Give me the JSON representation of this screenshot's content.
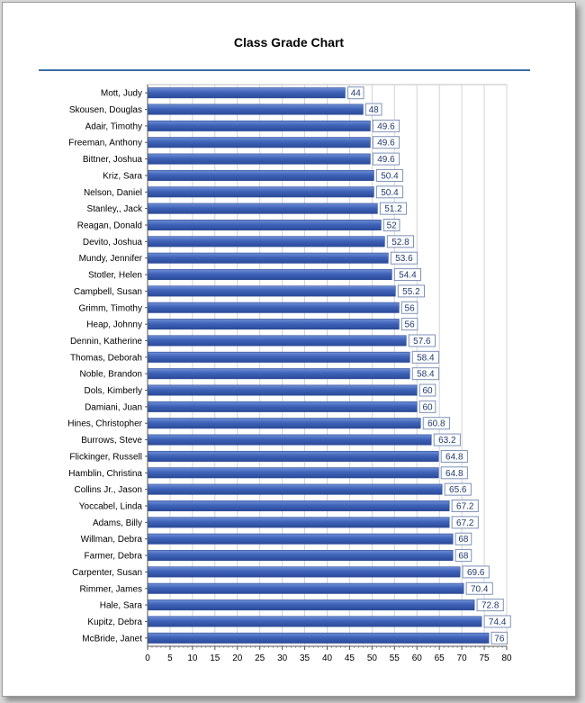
{
  "chart_data": {
    "type": "bar",
    "orientation": "horizontal",
    "title": "Class Grade Chart",
    "categories": [
      "Mott, Judy",
      "Skousen, Douglas",
      "Adair, Timothy",
      "Freeman, Anthony",
      "Bittner, Joshua",
      "Kriz, Sara",
      "Nelson, Daniel",
      "Stanley,, Jack",
      "Reagan, Donald",
      "Devito, Joshua",
      "Mundy, Jennifer",
      "Stotler, Helen",
      "Campbell, Susan",
      "Grimm, Timothy",
      "Heap, Johnny",
      "Dennin, Katherine",
      "Thomas, Deborah",
      "Noble, Brandon",
      "Dols, Kimberly",
      "Damiani, Juan",
      "Hines, Christopher",
      "Burrows, Steve",
      "Flickinger, Russell",
      "Hamblin, Christina",
      "Collins Jr., Jason",
      "Yoccabel, Linda",
      "Adams, Billy",
      "Willman, Debra",
      "Farmer, Debra",
      "Carpenter, Susan",
      "Rimmer, James",
      "Hale, Sara",
      "Kupitz, Debra",
      "McBride, Janet"
    ],
    "values": [
      44,
      48,
      49.6,
      49.6,
      49.6,
      50.4,
      50.4,
      51.2,
      52,
      52.8,
      53.6,
      54.4,
      55.2,
      56,
      56,
      57.6,
      58.4,
      58.4,
      60,
      60,
      60.8,
      63.2,
      64.8,
      64.8,
      65.6,
      67.2,
      67.2,
      68,
      68,
      69.6,
      70.4,
      72.8,
      74.4,
      76
    ],
    "value_labels": [
      "44",
      "48",
      "49.6",
      "49.6",
      "49.6",
      "50.4",
      "50.4",
      "51.2",
      "52",
      "52.8",
      "53.6",
      "54.4",
      "55.2",
      "56",
      "56",
      "57.6",
      "58.4",
      "58.4",
      "60",
      "60",
      "60.8",
      "63.2",
      "64.8",
      "64.8",
      "65.6",
      "67.2",
      "67.2",
      "68",
      "68",
      "69.6",
      "70.4",
      "72.8",
      "74.4",
      "76"
    ],
    "xlim": [
      0,
      80
    ],
    "x_ticks": [
      "0",
      "5",
      "10",
      "15",
      "20",
      "25",
      "30",
      "35",
      "40",
      "45",
      "50",
      "55",
      "60",
      "65",
      "70",
      "75",
      "80"
    ],
    "grid": "vertical",
    "legend": "none",
    "colors": {
      "bar": "#3f63b8",
      "bar_light": "#6f8fd6",
      "bar_dark": "#2b4a99",
      "label_border": "#7d92b8",
      "grid": "#d3d3d3"
    }
  }
}
